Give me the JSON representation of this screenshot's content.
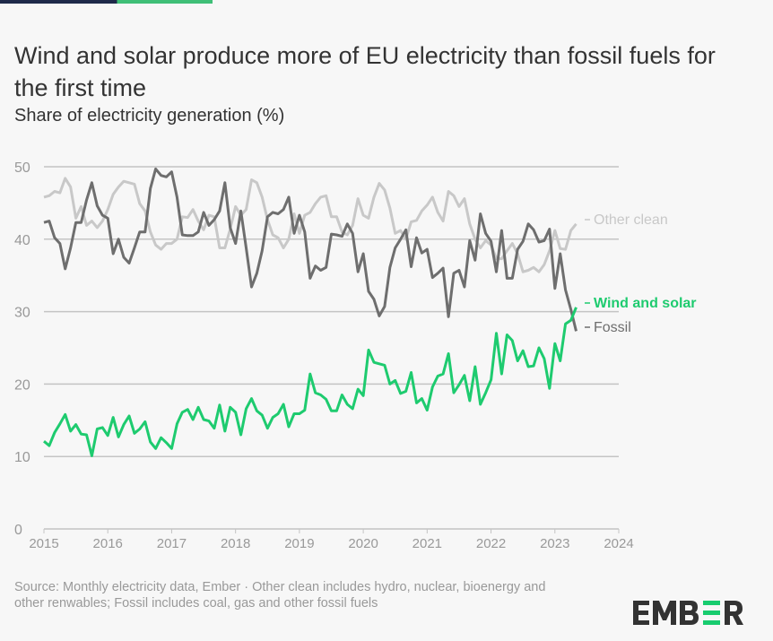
{
  "header": {
    "title": "Wind and solar produce more of EU electricity than fossil fuels for the first time",
    "subtitle": "Share of electricity generation (%)"
  },
  "footer": {
    "source": "Source: Monthly electricity data, Ember · Other clean includes hydro, nuclear, bioenergy and other renwables; Fossil includes coal, gas and other fossil fuels",
    "logo_text": "EMBER"
  },
  "colors": {
    "wind_solar": "#1ecb6f",
    "fossil": "#6e6e6e",
    "other_clean": "#c8c8c8",
    "grid": "#c4c4c4",
    "tick": "#999999",
    "brand_green": "#18cc6f",
    "brand_dark": "#333333"
  },
  "chart_data": {
    "type": "line",
    "title": "",
    "xlabel": "",
    "ylabel": "",
    "xlim": [
      "2015-01",
      "2024-01"
    ],
    "ylim": [
      0,
      50
    ],
    "grid": "horizontal",
    "legend": "inline-right",
    "x_ticks": [
      "2015",
      "2016",
      "2017",
      "2018",
      "2019",
      "2020",
      "2021",
      "2022",
      "2023",
      "2024"
    ],
    "y_ticks": [
      0,
      10,
      20,
      30,
      40,
      50
    ],
    "x": [
      "2015-01",
      "2015-02",
      "2015-03",
      "2015-04",
      "2015-05",
      "2015-06",
      "2015-07",
      "2015-08",
      "2015-09",
      "2015-10",
      "2015-11",
      "2015-12",
      "2016-01",
      "2016-02",
      "2016-03",
      "2016-04",
      "2016-05",
      "2016-06",
      "2016-07",
      "2016-08",
      "2016-09",
      "2016-10",
      "2016-11",
      "2016-12",
      "2017-01",
      "2017-02",
      "2017-03",
      "2017-04",
      "2017-05",
      "2017-06",
      "2017-07",
      "2017-08",
      "2017-09",
      "2017-10",
      "2017-11",
      "2017-12",
      "2018-01",
      "2018-02",
      "2018-03",
      "2018-04",
      "2018-05",
      "2018-06",
      "2018-07",
      "2018-08",
      "2018-09",
      "2018-10",
      "2018-11",
      "2018-12",
      "2019-01",
      "2019-02",
      "2019-03",
      "2019-04",
      "2019-05",
      "2019-06",
      "2019-07",
      "2019-08",
      "2019-09",
      "2019-10",
      "2019-11",
      "2019-12",
      "2020-01",
      "2020-02",
      "2020-03",
      "2020-04",
      "2020-05",
      "2020-06",
      "2020-07",
      "2020-08",
      "2020-09",
      "2020-10",
      "2020-11",
      "2020-12",
      "2021-01",
      "2021-02",
      "2021-03",
      "2021-04",
      "2021-05",
      "2021-06",
      "2021-07",
      "2021-08",
      "2021-09",
      "2021-10",
      "2021-11",
      "2021-12",
      "2022-01",
      "2022-02",
      "2022-03",
      "2022-04",
      "2022-05",
      "2022-06",
      "2022-07",
      "2022-08",
      "2022-09",
      "2022-10",
      "2022-11",
      "2022-12",
      "2023-01",
      "2023-02",
      "2023-03",
      "2023-04",
      "2023-05"
    ],
    "series": [
      {
        "name": "Other clean",
        "values": [
          45.8,
          46.0,
          46.6,
          46.4,
          48.4,
          47.2,
          42.9,
          44.5,
          41.9,
          42.5,
          41.6,
          42.5,
          44.1,
          46.2,
          47.2,
          48.0,
          47.8,
          47.6,
          44.9,
          43.9,
          41.0,
          39.2,
          38.6,
          39.4,
          39.4,
          40.0,
          43.1,
          43.0,
          44.1,
          42.5,
          41.3,
          43.3,
          43.1,
          38.8,
          38.8,
          41.4,
          44.5,
          43.3,
          44.1,
          48.2,
          47.8,
          45.8,
          42.7,
          40.6,
          40.2,
          38.8,
          40.0,
          43.5,
          40.8,
          43.3,
          43.7,
          44.9,
          45.8,
          46.0,
          43.1,
          43.1,
          41.0,
          40.6,
          41.9,
          45.6,
          43.3,
          42.9,
          45.8,
          47.7,
          46.8,
          44.3,
          40.8,
          41.2,
          40.0,
          42.4,
          42.6,
          43.9,
          44.7,
          45.8,
          43.7,
          42.5,
          46.6,
          46.0,
          44.5,
          45.6,
          42.1,
          40.0,
          38.8,
          39.8,
          39.2,
          37.3,
          37.3,
          38.4,
          39.4,
          38.0,
          35.5,
          35.7,
          36.1,
          35.5,
          36.5,
          38.4,
          41.2,
          38.7,
          38.6,
          41.2,
          42.1
        ]
      },
      {
        "name": "Wind and solar",
        "values": [
          12.1,
          11.5,
          13.3,
          14.5,
          15.8,
          13.5,
          14.4,
          13.1,
          13.0,
          10.1,
          13.8,
          14.0,
          12.9,
          15.4,
          12.7,
          14.4,
          15.6,
          13.2,
          13.8,
          14.8,
          12.0,
          11.1,
          12.6,
          11.9,
          11.1,
          14.5,
          16.1,
          16.5,
          15.1,
          16.8,
          15.1,
          14.9,
          13.9,
          17.1,
          13.5,
          16.8,
          16.1,
          13.0,
          16.6,
          18.0,
          16.3,
          15.7,
          13.9,
          15.4,
          15.9,
          17.2,
          14.1,
          15.9,
          15.9,
          16.4,
          21.4,
          18.8,
          18.5,
          17.9,
          16.3,
          16.3,
          18.5,
          17.2,
          16.6,
          19.3,
          18.4,
          24.7,
          23.0,
          22.8,
          22.6,
          20.0,
          20.5,
          18.7,
          19.0,
          21.6,
          17.4,
          18.0,
          16.4,
          19.6,
          21.1,
          21.4,
          24.2,
          18.8,
          19.9,
          21.2,
          17.7,
          22.4,
          17.2,
          18.8,
          20.6,
          27.0,
          21.4,
          26.8,
          26.0,
          23.2,
          24.6,
          22.4,
          22.5,
          25.0,
          23.5,
          19.4,
          25.6,
          23.2,
          28.3,
          28.8,
          30.6
        ]
      },
      {
        "name": "Fossil",
        "values": [
          42.3,
          42.5,
          40.2,
          39.4,
          35.9,
          38.8,
          42.3,
          42.3,
          45.4,
          47.8,
          44.6,
          43.3,
          42.9,
          38.0,
          40.0,
          37.5,
          36.7,
          38.8,
          41.0,
          41.0,
          47.0,
          49.7,
          48.8,
          48.6,
          49.3,
          45.8,
          40.6,
          40.5,
          40.5,
          41.0,
          43.7,
          41.9,
          42.7,
          43.9,
          47.8,
          41.6,
          39.4,
          43.9,
          38.8,
          33.4,
          35.3,
          38.4,
          43.1,
          43.7,
          43.5,
          44.1,
          45.8,
          40.8,
          43.3,
          41.0,
          34.6,
          36.3,
          35.7,
          36.1,
          40.7,
          40.6,
          40.4,
          42.1,
          40.8,
          35.5,
          38.0,
          32.8,
          31.7,
          29.4,
          30.7,
          36.1,
          38.8,
          40.0,
          41.3,
          36.2,
          40.2,
          38.1,
          38.6,
          34.7,
          35.3,
          36.0,
          29.3,
          35.3,
          35.7,
          33.4,
          39.8,
          37.1,
          43.5,
          40.8,
          39.7,
          35.5,
          41.2,
          34.6,
          34.6,
          38.6,
          39.7,
          42.1,
          41.3,
          39.6,
          39.8,
          41.4,
          33.2,
          38.0,
          33.0,
          30.3,
          27.3
        ]
      }
    ]
  }
}
